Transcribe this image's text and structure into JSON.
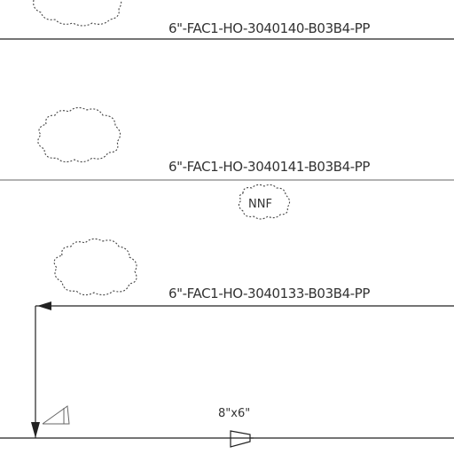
{
  "lines": [
    {
      "label": "6\"-FAC1-HO-3040140-B03B4-PP"
    },
    {
      "label": "6\"-FAC1-HO-3040141-B03B4-PP"
    },
    {
      "label": "6\"-FAC1-HO-3040133-B03B4-PP"
    }
  ],
  "nnf_tag": "NNF",
  "reducer_label": "8\"x6\""
}
